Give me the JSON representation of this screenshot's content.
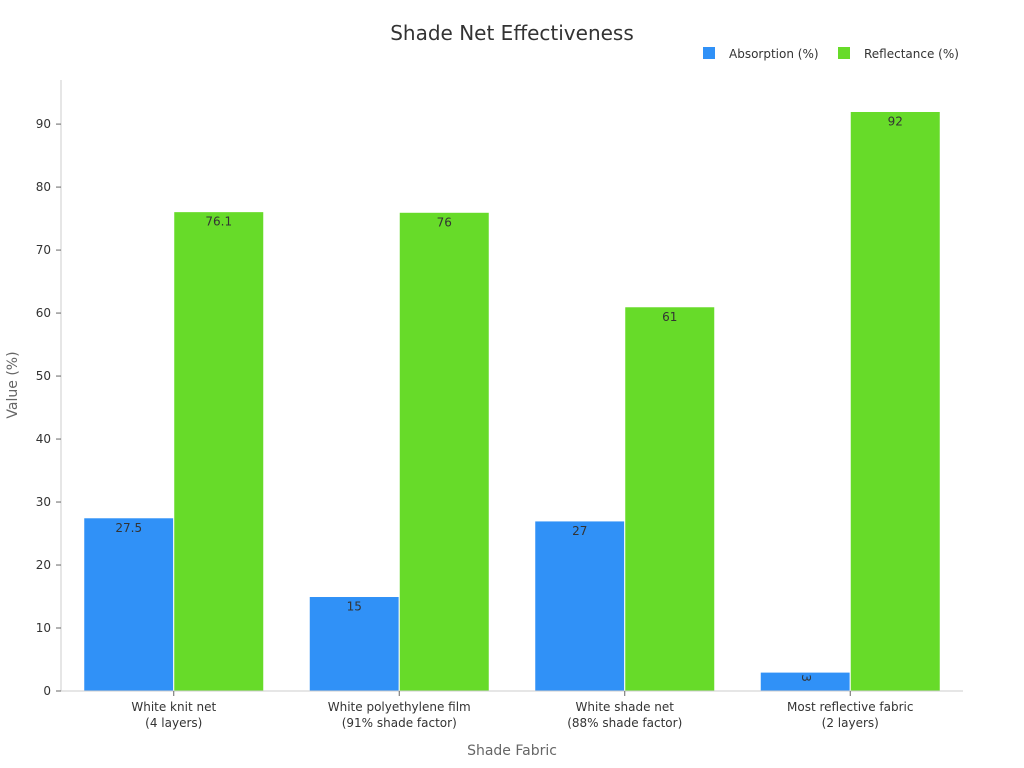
{
  "chart_data": {
    "type": "bar",
    "title": "Shade Net Effectiveness",
    "xlabel": "Shade Fabric",
    "ylabel": "Value (%)",
    "categories": [
      [
        "White knit net",
        "(4 layers)"
      ],
      [
        "White polyethylene film",
        "(91% shade factor)"
      ],
      [
        "White shade net",
        "(88% shade factor)"
      ],
      [
        "Most reflective fabric",
        "(2 layers)"
      ]
    ],
    "series": [
      {
        "name": "Absorption (%)",
        "color": "#3091f7",
        "values": [
          27.5,
          15,
          27,
          3
        ]
      },
      {
        "name": "Reflectance (%)",
        "color": "#67db29",
        "values": [
          76.1,
          76,
          61,
          92
        ]
      }
    ],
    "ylim": [
      0,
      97
    ],
    "yticks": [
      0,
      10,
      20,
      30,
      40,
      50,
      60,
      70,
      80,
      90
    ],
    "legend": "top-right",
    "grid": false
  }
}
